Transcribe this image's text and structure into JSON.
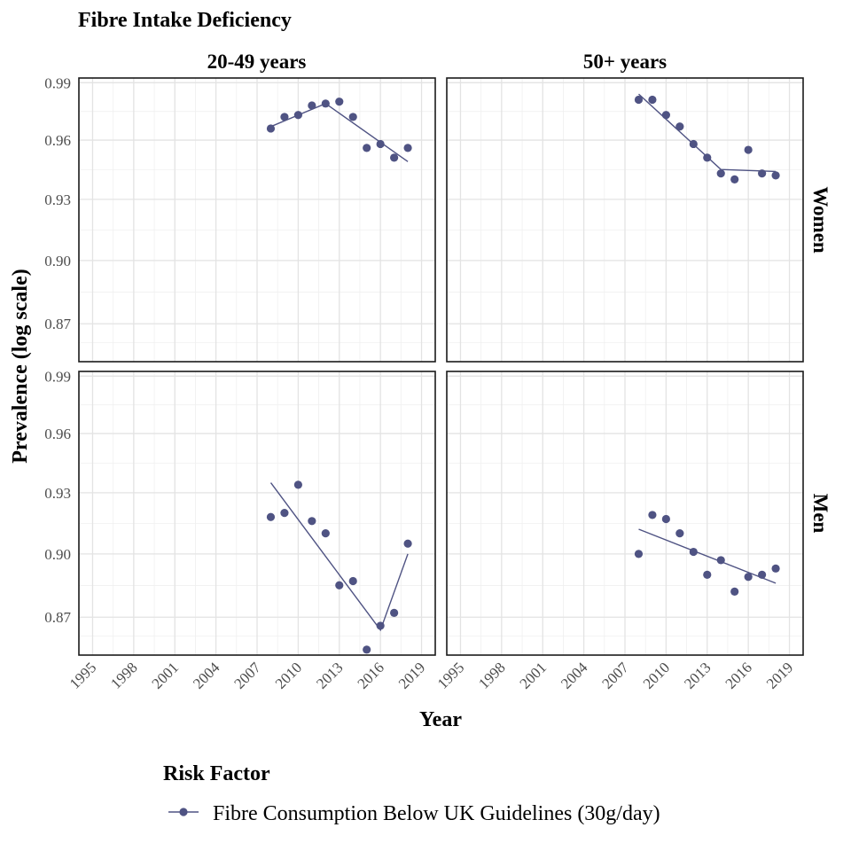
{
  "chart_data": {
    "type": "scatter",
    "title": "Fibre Intake Deficiency",
    "xlabel": "Year",
    "ylabel": "Prevalence (log scale)",
    "y_scale": "log",
    "xlim": [
      1994,
      2020
    ],
    "ylim": [
      0.8525,
      0.9925
    ],
    "x_ticks": [
      "1995",
      "1998",
      "2001",
      "2004",
      "2007",
      "2010",
      "2013",
      "2016",
      "2019"
    ],
    "y_ticks": [
      "0.87",
      "0.90",
      "0.93",
      "0.96",
      "0.99"
    ],
    "grid": true,
    "facet_columns": [
      "20-49 years",
      "50+ years"
    ],
    "facet_rows": [
      "Women",
      "Men"
    ],
    "series_color": "#4f5383",
    "legend": {
      "title": "Risk Factor",
      "position": "bottom",
      "entries": [
        "Fibre Consumption Below UK Guidelines (30g/day)"
      ]
    },
    "panels": [
      {
        "column": "20-49 years",
        "row": "Women",
        "points": [
          [
            2008,
            0.966
          ],
          [
            2009,
            0.972
          ],
          [
            2010,
            0.973
          ],
          [
            2011,
            0.978
          ],
          [
            2012,
            0.979
          ],
          [
            2013,
            0.98
          ],
          [
            2014,
            0.972
          ],
          [
            2015,
            0.956
          ],
          [
            2016,
            0.958
          ],
          [
            2017,
            0.951
          ],
          [
            2018,
            0.956
          ]
        ],
        "trend": [
          [
            2008,
            0.967
          ],
          [
            2012,
            0.979
          ],
          [
            2018,
            0.949
          ]
        ]
      },
      {
        "column": "50+ years",
        "row": "Women",
        "points": [
          [
            2008,
            0.981
          ],
          [
            2009,
            0.981
          ],
          [
            2010,
            0.973
          ],
          [
            2011,
            0.967
          ],
          [
            2012,
            0.958
          ],
          [
            2013,
            0.951
          ],
          [
            2014,
            0.943
          ],
          [
            2015,
            0.94
          ],
          [
            2016,
            0.955
          ],
          [
            2017,
            0.943
          ],
          [
            2018,
            0.942
          ]
        ],
        "trend": [
          [
            2008,
            0.984
          ],
          [
            2014,
            0.945
          ],
          [
            2018,
            0.944
          ]
        ]
      },
      {
        "column": "20-49 years",
        "row": "Men",
        "points": [
          [
            2008,
            0.918
          ],
          [
            2009,
            0.92
          ],
          [
            2010,
            0.934
          ],
          [
            2011,
            0.916
          ],
          [
            2012,
            0.91
          ],
          [
            2013,
            0.885
          ],
          [
            2014,
            0.887
          ],
          [
            2015,
            0.855
          ],
          [
            2016,
            0.866
          ],
          [
            2017,
            0.872
          ],
          [
            2018,
            0.905
          ]
        ],
        "trend": [
          [
            2008,
            0.935
          ],
          [
            2016,
            0.864
          ],
          [
            2018,
            0.9
          ]
        ]
      },
      {
        "column": "50+ years",
        "row": "Men",
        "points": [
          [
            2008,
            0.9
          ],
          [
            2009,
            0.919
          ],
          [
            2010,
            0.917
          ],
          [
            2011,
            0.91
          ],
          [
            2012,
            0.901
          ],
          [
            2013,
            0.89
          ],
          [
            2014,
            0.897
          ],
          [
            2015,
            0.882
          ],
          [
            2016,
            0.889
          ],
          [
            2017,
            0.89
          ],
          [
            2018,
            0.893
          ]
        ],
        "trend": [
          [
            2008,
            0.912
          ],
          [
            2018,
            0.886
          ]
        ]
      }
    ]
  }
}
